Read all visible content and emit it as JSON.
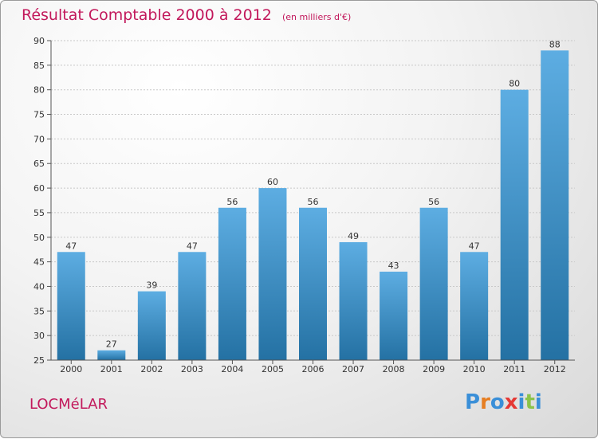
{
  "title": "Résultat Comptable 2000 à 2012",
  "subtitle": "(en milliers d'€)",
  "commune": "LOCMéLAR",
  "logo": "Proxiti",
  "colors": {
    "accent": "#c2185b",
    "bar_light": "#5dade2",
    "bar_dark": "#2471a3",
    "logo": [
      "#3a8fd8",
      "#e67e22",
      "#3a8fd8",
      "#e53935",
      "#3a8fd8",
      "#8bc34a",
      "#3a8fd8"
    ]
  },
  "chart_data": {
    "type": "bar",
    "title": "Résultat Comptable 2000 à 2012",
    "subtitle": "(en milliers d'€)",
    "categories": [
      "2000",
      "2001",
      "2002",
      "2003",
      "2004",
      "2005",
      "2006",
      "2007",
      "2008",
      "2009",
      "2010",
      "2011",
      "2012"
    ],
    "values": [
      47,
      27,
      39,
      47,
      56,
      60,
      56,
      49,
      43,
      56,
      47,
      80,
      88
    ],
    "ylim": [
      25,
      90
    ],
    "yticks": [
      25,
      30,
      35,
      40,
      45,
      50,
      55,
      60,
      65,
      70,
      75,
      80,
      85,
      90
    ],
    "xlabel": "",
    "ylabel": "",
    "grid": true
  }
}
